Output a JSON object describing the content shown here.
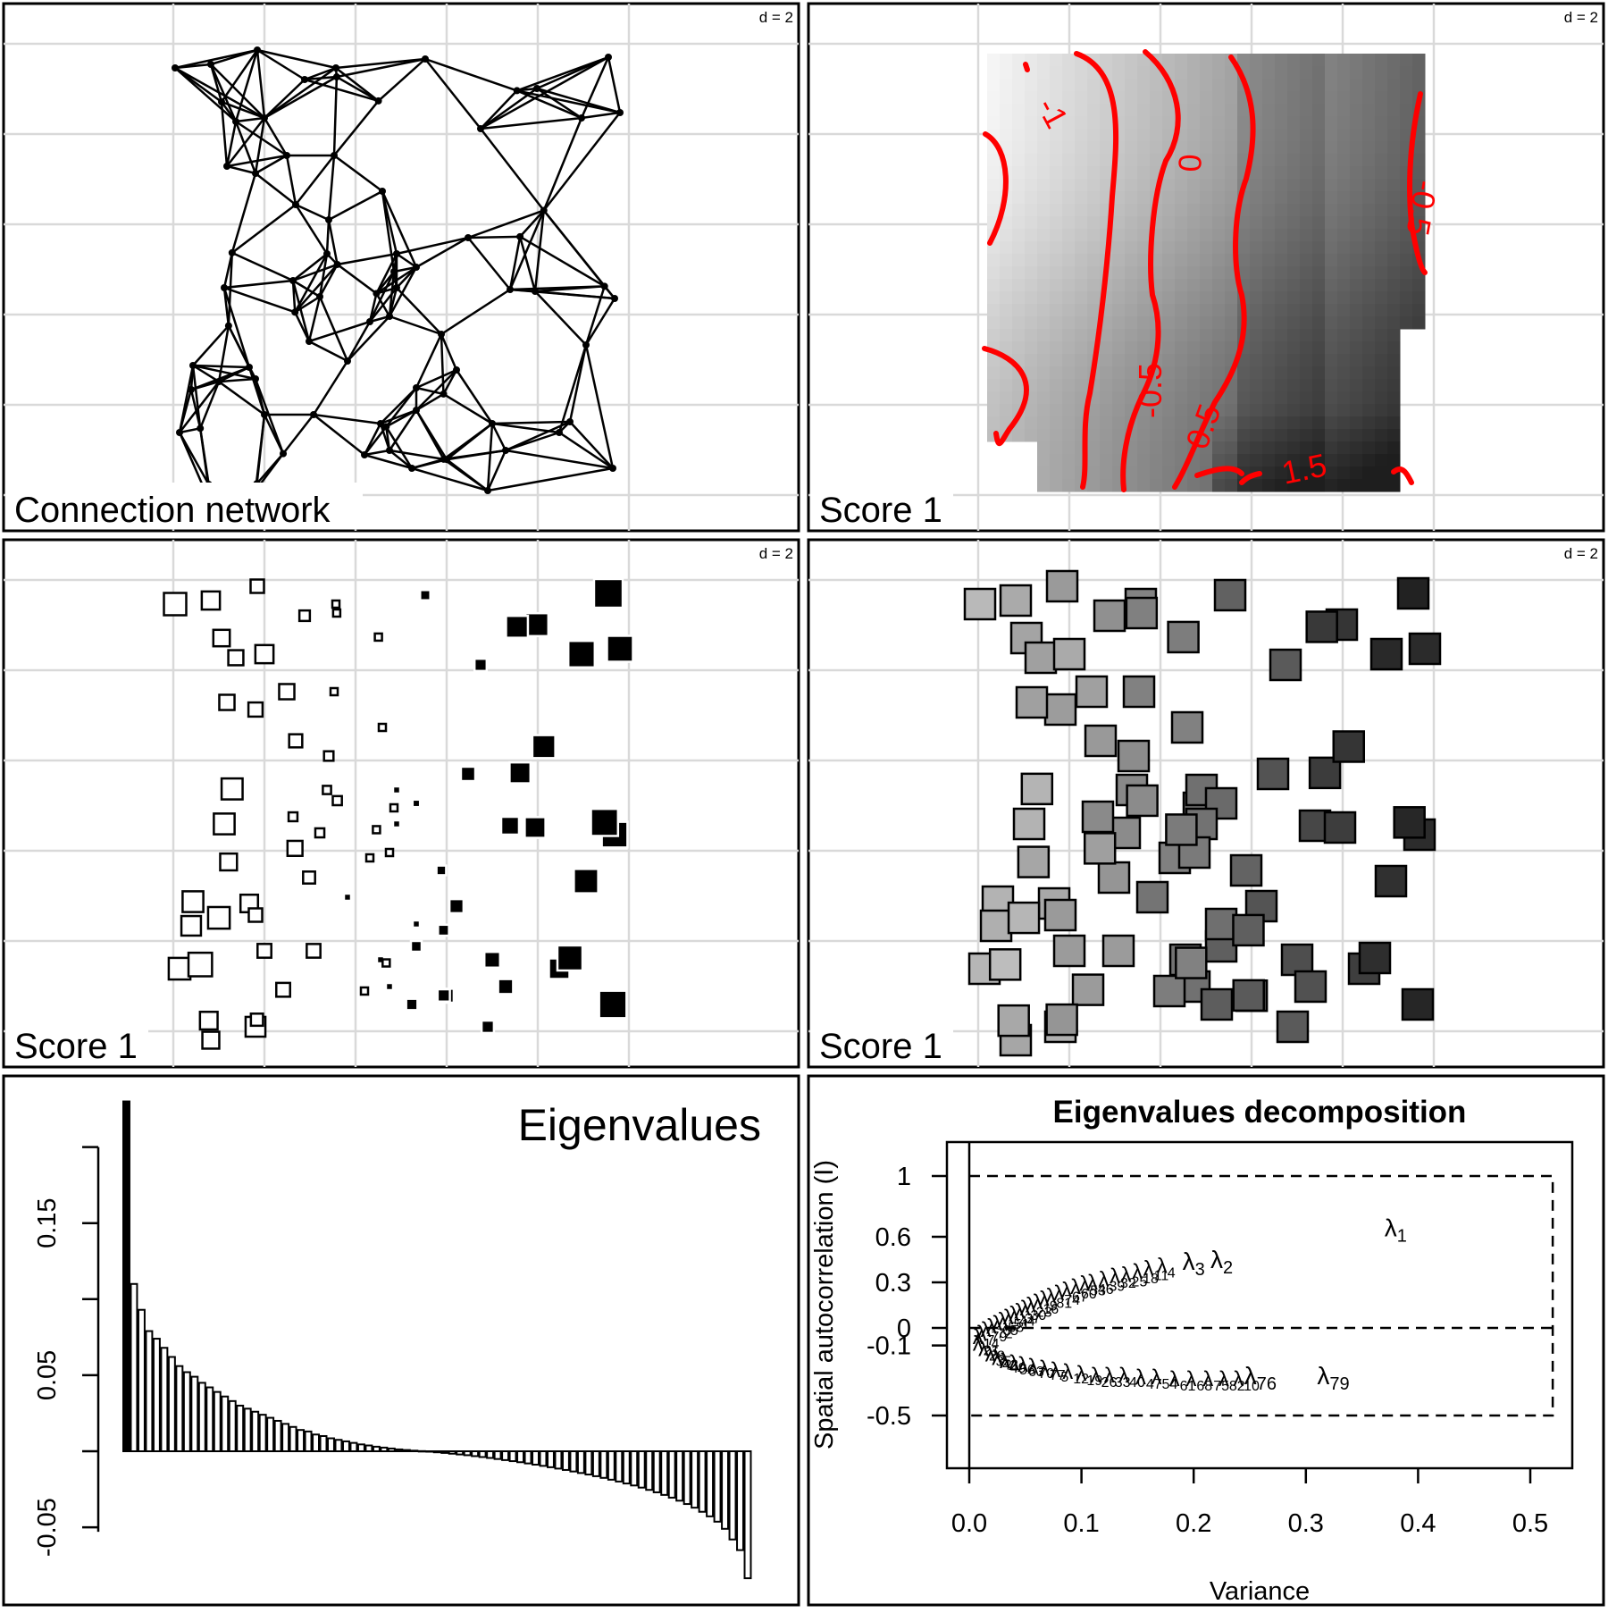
{
  "colors": {
    "ink": "#000000",
    "grid": "#d9d9d9",
    "contour": "#ff0000",
    "paper": "#ffffff"
  },
  "panels": {
    "p1": {
      "label": "Connection network",
      "scale": "d = 2"
    },
    "p2": {
      "label": "Score 1",
      "scale": "d = 2",
      "contour_labels": [
        "-1",
        "0",
        "-0.5",
        "-0.5",
        "0.5",
        "1.5",
        "0.5"
      ]
    },
    "p3": {
      "label": "Score 1",
      "scale": "d = 2"
    },
    "p4": {
      "label": "Score 1",
      "scale": "d = 2"
    }
  },
  "chart_data": [
    {
      "type": "bar",
      "title": "Eigenvalues",
      "xlabel": "",
      "ylabel": "",
      "yticks": [
        "-0.05",
        "0.05",
        "0.15"
      ],
      "ylim": [
        -0.06,
        0.2
      ],
      "values": [
        0.23,
        0.11,
        0.093,
        0.079,
        0.074,
        0.068,
        0.062,
        0.056,
        0.052,
        0.049,
        0.045,
        0.042,
        0.039,
        0.036,
        0.033,
        0.03,
        0.028,
        0.026,
        0.024,
        0.022,
        0.02,
        0.018,
        0.016,
        0.014,
        0.013,
        0.011,
        0.01,
        0.0085,
        0.0075,
        0.0065,
        0.0055,
        0.0045,
        0.0038,
        0.003,
        0.0024,
        0.0018,
        0.0012,
        0.0008,
        0.0004,
        0.0001,
        -0.0003,
        -0.0007,
        -0.0011,
        -0.0016,
        -0.0021,
        -0.0026,
        -0.0032,
        -0.0038,
        -0.0044,
        -0.0051,
        -0.0058,
        -0.0065,
        -0.0072,
        -0.008,
        -0.0088,
        -0.0096,
        -0.0105,
        -0.0114,
        -0.0123,
        -0.0133,
        -0.0143,
        -0.0153,
        -0.0164,
        -0.0175,
        -0.0187,
        -0.0199,
        -0.0212,
        -0.0225,
        -0.0239,
        -0.0254,
        -0.027,
        -0.0287,
        -0.0305,
        -0.0325,
        -0.0347,
        -0.0371,
        -0.0398,
        -0.0428,
        -0.0463,
        -0.051,
        -0.058,
        -0.065,
        -0.0835
      ]
    },
    {
      "type": "scatter",
      "title": "Eigenvalues decomposition",
      "xlabel": "Variance",
      "ylabel": "Spatial autocorrelation (I)",
      "xticks": [
        "0.0",
        "0.1",
        "0.2",
        "0.3",
        "0.4",
        "0.5"
      ],
      "yticks": [
        "-0.5",
        "-0.1",
        "0",
        "0.3",
        "0.6",
        "1"
      ],
      "xlim": [
        0.0,
        0.5
      ],
      "ylim": [
        -0.5,
        1.0
      ],
      "bounds": {
        "I_max": 1.0,
        "I_expected": 0.0,
        "I_min": -0.5,
        "var_max": 0.52
      },
      "named_points": [
        {
          "label": "λ1",
          "x": 0.37,
          "y": 0.65
        },
        {
          "label": "λ2",
          "x": 0.215,
          "y": 0.44
        },
        {
          "label": "λ3",
          "x": 0.19,
          "y": 0.43
        },
        {
          "label": "λ79",
          "x": 0.31,
          "y": -0.28
        },
        {
          "label": "λ76",
          "x": 0.245,
          "y": -0.28
        }
      ],
      "positive_points": [
        [
          0.167,
          0.41
        ],
        [
          0.155,
          0.39
        ],
        [
          0.145,
          0.37
        ],
        [
          0.135,
          0.35
        ],
        [
          0.125,
          0.34
        ],
        [
          0.115,
          0.32
        ],
        [
          0.105,
          0.3
        ],
        [
          0.098,
          0.29
        ],
        [
          0.09,
          0.27
        ],
        [
          0.082,
          0.25
        ],
        [
          0.075,
          0.23
        ],
        [
          0.068,
          0.21
        ],
        [
          0.062,
          0.19
        ],
        [
          0.056,
          0.17
        ],
        [
          0.05,
          0.15
        ],
        [
          0.045,
          0.13
        ],
        [
          0.04,
          0.11
        ],
        [
          0.035,
          0.09
        ],
        [
          0.03,
          0.07
        ],
        [
          0.025,
          0.05
        ],
        [
          0.02,
          0.03
        ],
        [
          0.015,
          0.01
        ],
        [
          0.01,
          -0.01
        ],
        [
          0.006,
          -0.03
        ],
        [
          0.003,
          -0.05
        ]
      ],
      "negative_points": [
        [
          0.003,
          -0.09
        ],
        [
          0.008,
          -0.12
        ],
        [
          0.014,
          -0.15
        ],
        [
          0.02,
          -0.17
        ],
        [
          0.027,
          -0.19
        ],
        [
          0.035,
          -0.2
        ],
        [
          0.043,
          -0.21
        ],
        [
          0.052,
          -0.22
        ],
        [
          0.062,
          -0.23
        ],
        [
          0.072,
          -0.24
        ],
        [
          0.083,
          -0.25
        ],
        [
          0.095,
          -0.26
        ],
        [
          0.108,
          -0.27
        ],
        [
          0.12,
          -0.27
        ],
        [
          0.133,
          -0.27
        ],
        [
          0.148,
          -0.28
        ],
        [
          0.162,
          -0.28
        ],
        [
          0.178,
          -0.29
        ],
        [
          0.193,
          -0.29
        ],
        [
          0.208,
          -0.29
        ],
        [
          0.222,
          -0.29
        ],
        [
          0.235,
          -0.29
        ]
      ]
    }
  ]
}
